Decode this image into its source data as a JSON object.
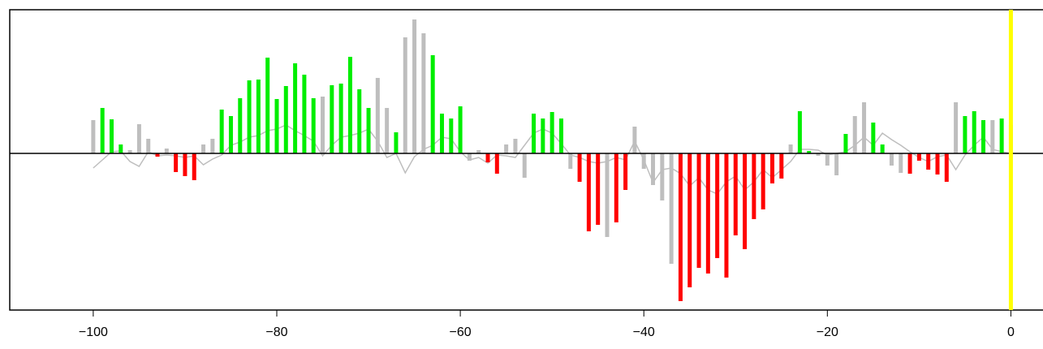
{
  "chart_data": {
    "type": "bar",
    "x": [
      -100,
      -99,
      -98,
      -97,
      -96,
      -95,
      -94,
      -93,
      -92,
      -91,
      -90,
      -89,
      -88,
      -87,
      -86,
      -85,
      -84,
      -83,
      -82,
      -81,
      -80,
      -79,
      -78,
      -77,
      -76,
      -75,
      -74,
      -73,
      -72,
      -71,
      -70,
      -69,
      -68,
      -67,
      -66,
      -65,
      -64,
      -63,
      -62,
      -61,
      -60,
      -59,
      -58,
      -57,
      -56,
      -55,
      -54,
      -53,
      -52,
      -51,
      -50,
      -49,
      -48,
      -47,
      -46,
      -45,
      -44,
      -43,
      -42,
      -41,
      -40,
      -39,
      -38,
      -37,
      -36,
      -35,
      -34,
      -33,
      -32,
      -31,
      -30,
      -29,
      -28,
      -27,
      -26,
      -25,
      -24,
      -23,
      -22,
      -21,
      -20,
      -19,
      -18,
      -17,
      -16,
      -15,
      -14,
      -13,
      -12,
      -11,
      -10,
      -9,
      -8,
      -7,
      -6,
      -5,
      -4,
      -3,
      -2,
      -1,
      0
    ],
    "values": [
      41,
      56,
      42,
      11,
      4,
      36,
      18,
      -4,
      6,
      -23,
      -28,
      -33,
      11,
      18,
      54,
      46,
      68,
      90,
      91,
      118,
      67,
      83,
      111,
      97,
      68,
      70,
      84,
      86,
      119,
      79,
      56,
      93,
      56,
      26,
      143,
      165,
      148,
      121,
      49,
      43,
      58,
      -9,
      4,
      -11,
      -25,
      11,
      18,
      -30,
      49,
      43,
      51,
      43,
      -19,
      -35,
      -96,
      -88,
      -103,
      -85,
      -45,
      33,
      -19,
      -39,
      -58,
      -136,
      -182,
      -165,
      -141,
      -148,
      -129,
      -153,
      -101,
      -118,
      -81,
      -69,
      -37,
      -31,
      11,
      52,
      3,
      -3,
      -15,
      -27,
      24,
      46,
      63,
      38,
      11,
      -15,
      -24,
      -25,
      -9,
      -20,
      -26,
      -35,
      63,
      46,
      52,
      41,
      41,
      43,
      35
    ],
    "colors": [
      "#bebebe",
      "#00ee00",
      "#00ee00",
      "#00ee00",
      "#bebebe",
      "#bebebe",
      "#bebebe",
      "#ff0000",
      "#bebebe",
      "#ff0000",
      "#ff0000",
      "#ff0000",
      "#bebebe",
      "#bebebe",
      "#00ee00",
      "#00ee00",
      "#00ee00",
      "#00ee00",
      "#00ee00",
      "#00ee00",
      "#00ee00",
      "#00ee00",
      "#00ee00",
      "#00ee00",
      "#00ee00",
      "#bebebe",
      "#00ee00",
      "#00ee00",
      "#00ee00",
      "#00ee00",
      "#00ee00",
      "#bebebe",
      "#bebebe",
      "#00ee00",
      "#bebebe",
      "#bebebe",
      "#bebebe",
      "#00ee00",
      "#00ee00",
      "#00ee00",
      "#00ee00",
      "#bebebe",
      "#bebebe",
      "#ff0000",
      "#ff0000",
      "#bebebe",
      "#bebebe",
      "#bebebe",
      "#00ee00",
      "#00ee00",
      "#00ee00",
      "#00ee00",
      "#bebebe",
      "#ff0000",
      "#ff0000",
      "#ff0000",
      "#bebebe",
      "#ff0000",
      "#ff0000",
      "#bebebe",
      "#bebebe",
      "#bebebe",
      "#bebebe",
      "#bebebe",
      "#ff0000",
      "#ff0000",
      "#ff0000",
      "#ff0000",
      "#ff0000",
      "#ff0000",
      "#ff0000",
      "#ff0000",
      "#ff0000",
      "#ff0000",
      "#ff0000",
      "#ff0000",
      "#bebebe",
      "#00ee00",
      "#00ee00",
      "#bebebe",
      "#bebebe",
      "#bebebe",
      "#00ee00",
      "#bebebe",
      "#bebebe",
      "#00ee00",
      "#00ee00",
      "#bebebe",
      "#bebebe",
      "#ff0000",
      "#ff0000",
      "#ff0000",
      "#ff0000",
      "#ff0000",
      "#bebebe",
      "#00ee00",
      "#00ee00",
      "#00ee00",
      "#bebebe",
      "#00ee00",
      "#bebebe"
    ],
    "line": {
      "color": "#bebebe",
      "values": [
        -18,
        -8,
        2,
        3,
        -10,
        -16,
        2,
        -3,
        -2,
        -3,
        -5,
        -3,
        -14,
        -7,
        -2,
        10,
        14,
        20,
        22,
        28,
        30,
        35,
        28,
        22,
        15,
        -3,
        10,
        20,
        22,
        25,
        30,
        15,
        -5,
        0,
        -24,
        -4,
        5,
        10,
        20,
        18,
        2,
        -8,
        -5,
        -12,
        -2,
        -3,
        -5,
        10,
        25,
        30,
        25,
        12,
        -2,
        -5,
        -10,
        -12,
        -10,
        -5,
        -8,
        15,
        -8,
        -36,
        -20,
        -18,
        -25,
        -40,
        -30,
        -45,
        -50,
        -35,
        -28,
        -45,
        -35,
        -20,
        -30,
        -20,
        -10,
        5,
        5,
        4,
        -2,
        0,
        2,
        10,
        20,
        10,
        25,
        17,
        10,
        2,
        -5,
        -10,
        -4,
        -2,
        -20,
        -2,
        10,
        20,
        5,
        2,
        0
      ]
    },
    "hline": 0,
    "vline": {
      "value": 0,
      "color": "#ffff00"
    },
    "xlim": [
      -109.1,
      3.5
    ],
    "ylim": [
      -193,
      177
    ],
    "xticks": [
      {
        "value": -100,
        "label": "−100"
      },
      {
        "value": -80,
        "label": "−80"
      },
      {
        "value": -60,
        "label": "−60"
      },
      {
        "value": -40,
        "label": "−40"
      },
      {
        "value": -20,
        "label": "−20"
      },
      0
    ]
  }
}
